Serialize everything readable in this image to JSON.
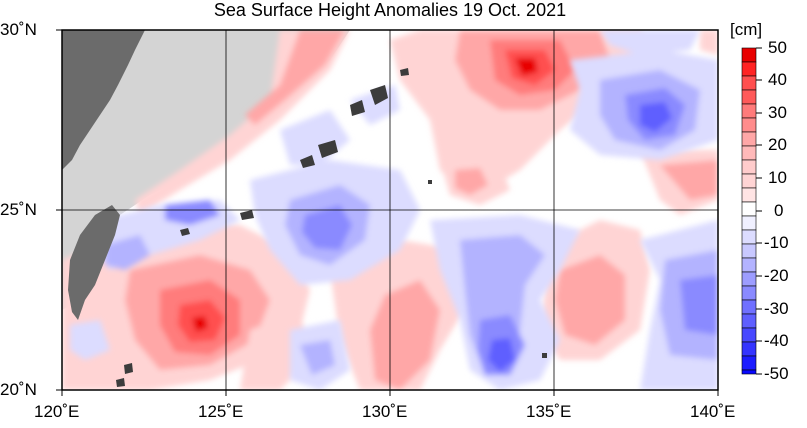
{
  "title": "Sea Surface Height Anomalies  19 Oct. 2021",
  "colorbar": {
    "unit": "[cm]",
    "labels": [
      "50",
      "40",
      "30",
      "20",
      "10",
      "0",
      "-10",
      "-20",
      "-30",
      "-40",
      "-50"
    ],
    "colors": {
      "pos": [
        "#ffd4d4",
        "#ffa7a7",
        "#ff7b7b",
        "#ff4f4f",
        "#ff2323",
        "#e80000"
      ],
      "neg": [
        "#dcdcff",
        "#b3b3ff",
        "#8a8aff",
        "#5f5fff",
        "#3434ff",
        "#0808ff"
      ],
      "zero": "#ffffff"
    }
  },
  "axes": {
    "lon_labels": [
      "120˚E",
      "125˚E",
      "130˚E",
      "135˚E",
      "140˚E"
    ],
    "lat_labels": [
      "30˚N",
      "25˚N",
      "20˚N"
    ]
  },
  "land_color": "#6b6b6b",
  "shelf_color": "#d4d4d4"
}
